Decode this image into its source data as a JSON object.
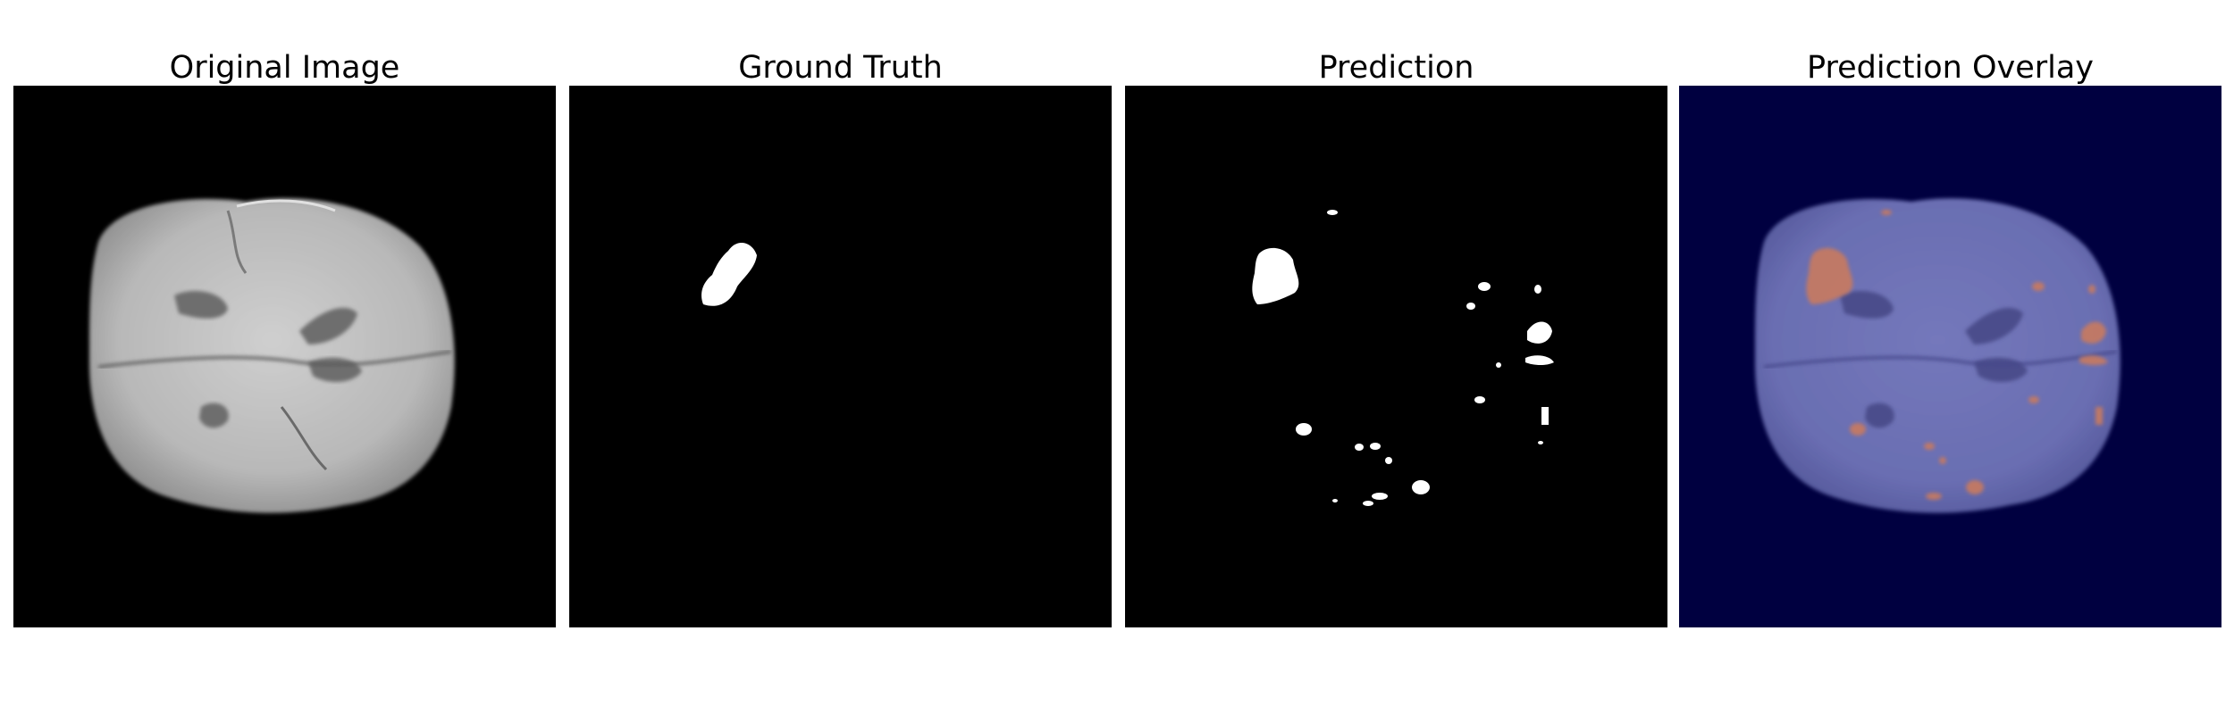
{
  "panels": [
    {
      "id": "original",
      "title": "Original Image"
    },
    {
      "id": "ground_truth",
      "title": "Ground Truth"
    },
    {
      "id": "prediction",
      "title": "Prediction"
    },
    {
      "id": "overlay",
      "title": "Prediction Overlay"
    }
  ],
  "colors": {
    "background": "#000000",
    "mask": "#ffffff",
    "overlay_background": "#000040",
    "overlay_brain": "#6b6fb3",
    "overlay_tumor": "#c97a5e"
  }
}
